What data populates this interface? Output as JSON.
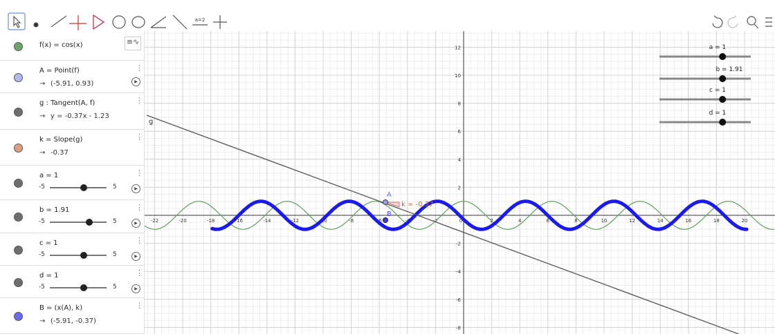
{
  "toolbar": {
    "slider_tool": "a=2"
  },
  "algebra": [
    {
      "expr": "f(x) = cos(x)",
      "color": "#6aa86a"
    },
    {
      "expr": "A = Point(f)",
      "value": "(-5.91, 0.93)",
      "color": "#b4b8f4"
    },
    {
      "expr": "g : Tangent(A, f)",
      "value": "y = -0.37x - 1.23",
      "color": "#6e6e6e"
    },
    {
      "expr": "k = Slope(g)",
      "value": "-0.37",
      "color": "#d9a17f"
    },
    {
      "expr": "a = 1",
      "min": -5,
      "max": 5,
      "value": 1,
      "color": "#6e6e6e"
    },
    {
      "expr": "b = 1.91",
      "min": -5,
      "max": 5,
      "value": 1.91,
      "color": "#6e6e6e"
    },
    {
      "expr": "c = 1",
      "min": -5,
      "max": 5,
      "value": 1,
      "color": "#6e6e6e"
    },
    {
      "expr": "d = 1",
      "min": -5,
      "max": 5,
      "value": 1,
      "color": "#6e6e6e"
    },
    {
      "expr": "B = (x(A), k)",
      "value": "(-5.91, -0.37)",
      "color": "#6b6bf2"
    }
  ],
  "graphics": {
    "labels": {
      "line": "g",
      "point_a": "A",
      "point_b": "B",
      "slope": "k = -0.37"
    },
    "xticks": [
      -22,
      -20,
      -18,
      -16,
      -14,
      -12,
      -10,
      -8,
      -6,
      -4,
      -2,
      0,
      2,
      4,
      6,
      8,
      10,
      12,
      14,
      16,
      18,
      20
    ],
    "yticks": [
      12,
      10,
      8,
      6,
      4,
      2,
      -2,
      -4,
      -6,
      -8
    ]
  }
}
